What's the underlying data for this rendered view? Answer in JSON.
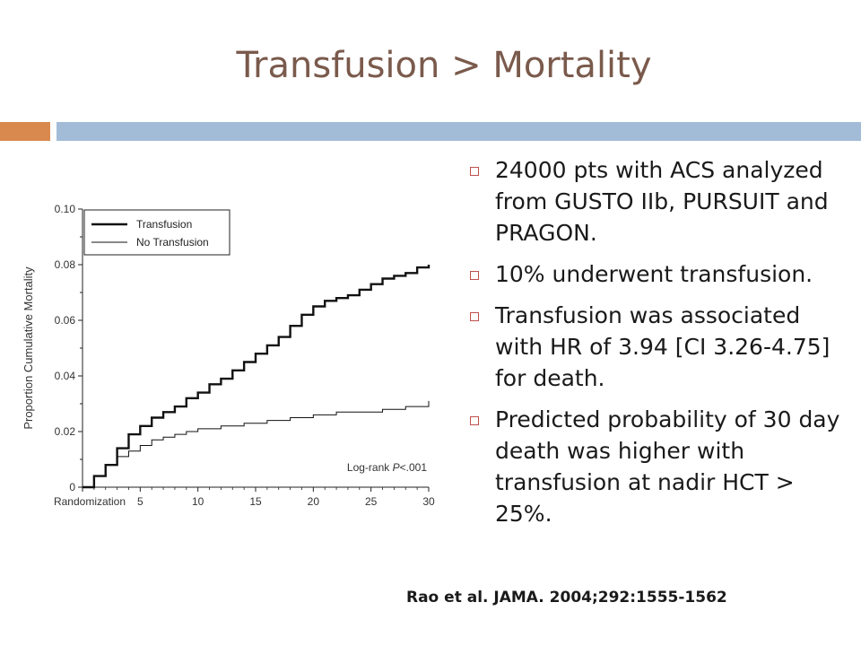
{
  "slide": {
    "title": "Transfusion > Mortality",
    "bullets": [
      "24000 pts with ACS analyzed from GUSTO IIb, PURSUIT and PRAGON.",
      "10% underwent transfusion.",
      "Transfusion was associated with HR of 3.94 [CI 3.26-4.75] for death.",
      "Predicted probability of 30 day death was higher with transfusion at nadir HCT > 25%."
    ],
    "citation": "Rao et al. JAMA. 2004;292:1555-1562",
    "colors": {
      "title": "#7a5a4c",
      "accent_orange": "#d9894d",
      "accent_blue": "#a2bcd8",
      "bullet": "#c0504d"
    }
  },
  "chart_data": {
    "type": "line",
    "xlabel": "",
    "ylabel": "Proportion Cumulative Mortality",
    "xlim": [
      0,
      30
    ],
    "ylim": [
      0,
      0.1
    ],
    "x_ticks": [
      {
        "value": 0,
        "label": "Randomization"
      },
      {
        "value": 5,
        "label": "5"
      },
      {
        "value": 10,
        "label": "10"
      },
      {
        "value": 15,
        "label": "15"
      },
      {
        "value": 20,
        "label": "20"
      },
      {
        "value": 25,
        "label": "25"
      },
      {
        "value": 30,
        "label": "30"
      }
    ],
    "y_ticks": [
      "0",
      "0.02",
      "0.04",
      "0.06",
      "0.08",
      "0.10"
    ],
    "legend_position": "top-left",
    "annotation": {
      "prefix": "Log-rank ",
      "italic": "P",
      "suffix": "<.001"
    },
    "series": [
      {
        "name": "Transfusion",
        "style": "thick",
        "x": [
          0,
          1,
          2,
          3,
          4,
          5,
          6,
          7,
          8,
          9,
          10,
          11,
          12,
          13,
          14,
          15,
          16,
          17,
          18,
          19,
          20,
          21,
          22,
          23,
          24,
          25,
          26,
          27,
          28,
          29,
          30
        ],
        "y": [
          0,
          0.004,
          0.008,
          0.014,
          0.019,
          0.022,
          0.025,
          0.027,
          0.029,
          0.032,
          0.034,
          0.037,
          0.039,
          0.042,
          0.045,
          0.048,
          0.051,
          0.054,
          0.058,
          0.062,
          0.065,
          0.067,
          0.068,
          0.069,
          0.071,
          0.073,
          0.075,
          0.076,
          0.077,
          0.079,
          0.08
        ]
      },
      {
        "name": "No Transfusion",
        "style": "thin",
        "x": [
          0,
          1,
          2,
          3,
          4,
          5,
          6,
          7,
          8,
          9,
          10,
          12,
          14,
          16,
          18,
          20,
          22,
          24,
          26,
          28,
          30
        ],
        "y": [
          0,
          0.004,
          0.008,
          0.011,
          0.013,
          0.015,
          0.017,
          0.018,
          0.019,
          0.02,
          0.021,
          0.022,
          0.023,
          0.024,
          0.025,
          0.026,
          0.027,
          0.027,
          0.028,
          0.029,
          0.031
        ]
      }
    ]
  }
}
